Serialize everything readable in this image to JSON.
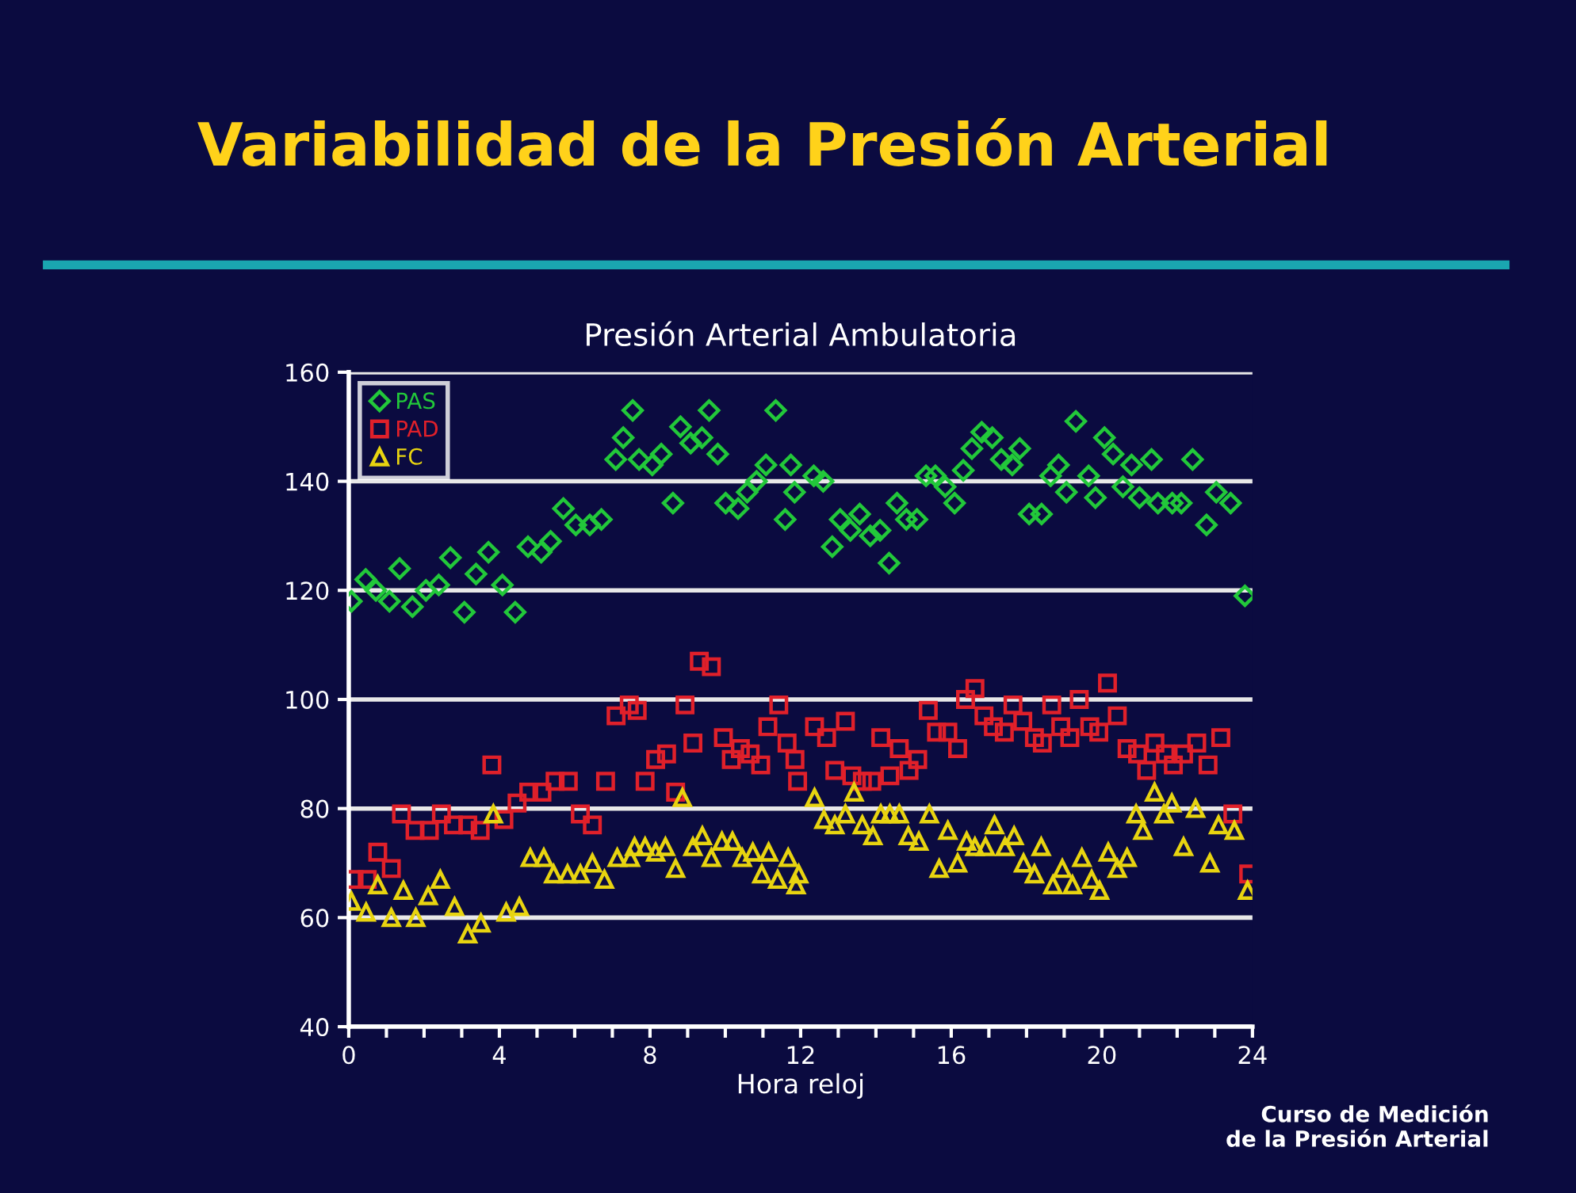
{
  "chart_data": {
    "type": "scatter",
    "title": "Variabilidad de la Presión Arterial",
    "subtitle": "Presión Arterial Ambulatoria",
    "xlabel": "Hora reloj",
    "annotations": [
      "Curso de Medición\nde la Presión Arterial"
    ],
    "xlim": [
      0,
      24
    ],
    "ylim": [
      40,
      160
    ],
    "xticks": [
      0,
      {
        "value": 1,
        "label": null
      },
      {
        "value": 2,
        "label": null
      },
      {
        "value": 3,
        "label": null
      },
      4,
      {
        "value": 5,
        "label": null
      },
      {
        "value": 6,
        "label": null
      },
      {
        "value": 7,
        "label": null
      },
      8,
      {
        "value": 9,
        "label": null
      },
      {
        "value": 10,
        "label": null
      },
      {
        "value": 11,
        "label": null
      },
      12,
      {
        "value": 13,
        "label": null
      },
      {
        "value": 14,
        "label": null
      },
      {
        "value": 15,
        "label": null
      },
      16,
      {
        "value": 17,
        "label": null
      },
      {
        "value": 18,
        "label": null
      },
      {
        "value": 19,
        "label": null
      },
      20,
      {
        "value": 21,
        "label": null
      },
      {
        "value": 22,
        "label": null
      },
      {
        "value": 23,
        "label": null
      },
      24
    ],
    "yticks": [
      40,
      60,
      80,
      100,
      120,
      140,
      160
    ],
    "grid": "y",
    "legend": "top left",
    "series": [
      {
        "name": "PAS",
        "color": "#22c83a",
        "marker": "diamond",
        "x": [
          0.07,
          0.45,
          0.72,
          1.08,
          1.35,
          1.69,
          2.05,
          2.39,
          2.7,
          3.07,
          3.38,
          3.71,
          4.08,
          4.42,
          4.76,
          5.11,
          5.36,
          5.7,
          6.03,
          6.4,
          6.71,
          7.09,
          7.29,
          7.54,
          7.71,
          8.06,
          8.3,
          8.61,
          8.81,
          9.08,
          9.38,
          9.57,
          9.8,
          10.01,
          10.34,
          10.58,
          10.83,
          11.08,
          11.34,
          11.59,
          11.74,
          11.84,
          12.35,
          12.6,
          12.84,
          13.05,
          13.32,
          13.57,
          13.85,
          14.11,
          14.35,
          14.56,
          14.81,
          15.09,
          15.33,
          15.58,
          15.84,
          16.09,
          16.32,
          16.55,
          16.81,
          17.09,
          17.33,
          17.62,
          17.82,
          18.07,
          18.4,
          18.64,
          18.85,
          19.06,
          19.31,
          19.65,
          19.83,
          20.07,
          20.3,
          20.56,
          20.79,
          21.0,
          21.32,
          21.49,
          21.87,
          22.11,
          22.41,
          22.78,
          23.04,
          23.42,
          23.8
        ],
        "values": [
          118,
          122,
          120,
          118,
          124,
          117,
          120,
          121,
          126,
          116,
          123,
          127,
          121,
          116,
          128,
          127,
          129,
          135,
          132,
          132,
          133,
          144,
          148,
          153,
          144,
          143,
          145,
          136,
          150,
          147,
          148,
          153,
          145,
          136,
          135,
          138,
          140,
          143,
          153,
          133,
          143,
          138,
          141,
          140,
          128,
          133,
          131,
          134,
          130,
          131,
          125,
          136,
          133,
          133,
          141,
          141,
          139,
          136,
          142,
          146,
          149,
          148,
          144,
          143,
          146,
          134,
          134,
          141,
          143,
          138,
          151,
          141,
          137,
          148,
          145,
          139,
          143,
          137,
          144,
          136,
          136,
          136,
          144,
          132,
          138,
          136,
          119
        ]
      },
      {
        "name": "PAD",
        "color": "#e0202a",
        "marker": "square",
        "x": [
          0.14,
          0.49,
          0.77,
          1.13,
          1.4,
          1.76,
          2.14,
          2.46,
          2.78,
          3.16,
          3.49,
          3.8,
          4.12,
          4.47,
          4.78,
          5.13,
          5.48,
          5.83,
          6.15,
          6.47,
          6.82,
          7.1,
          7.45,
          7.66,
          7.87,
          8.15,
          8.44,
          8.68,
          8.93,
          9.14,
          9.31,
          9.63,
          9.95,
          10.16,
          10.4,
          10.66,
          10.94,
          11.13,
          11.42,
          11.64,
          11.85,
          11.92,
          12.37,
          12.69,
          12.91,
          13.19,
          13.36,
          13.64,
          13.89,
          14.13,
          14.37,
          14.62,
          14.88,
          15.11,
          15.39,
          15.61,
          15.91,
          16.17,
          16.38,
          16.63,
          16.87,
          17.12,
          17.41,
          17.64,
          17.9,
          18.21,
          18.42,
          18.67,
          18.91,
          19.15,
          19.4,
          19.68,
          19.92,
          20.15,
          20.41,
          20.67,
          20.95,
          21.19,
          21.41,
          21.69,
          21.9,
          22.17,
          22.52,
          22.82,
          23.16,
          23.48,
          23.9
        ],
        "values": [
          67,
          67,
          72,
          69,
          79,
          76,
          76,
          79,
          77,
          77,
          76,
          88,
          78,
          81,
          83,
          83,
          85,
          85,
          79,
          77,
          85,
          97,
          99,
          98,
          85,
          89,
          90,
          83,
          99,
          92,
          107,
          106,
          93,
          89,
          91,
          90,
          88,
          95,
          99,
          92,
          89,
          85,
          95,
          93,
          87,
          96,
          86,
          85,
          85,
          93,
          86,
          91,
          87,
          89,
          98,
          94,
          94,
          91,
          100,
          102,
          97,
          95,
          94,
          99,
          96,
          93,
          92,
          99,
          95,
          93,
          100,
          95,
          94,
          103,
          97,
          91,
          90,
          87,
          92,
          90,
          88,
          90,
          92,
          88,
          93,
          79,
          68
        ]
      },
      {
        "name": "FC",
        "color": "#e8d410",
        "marker": "triangle",
        "x": [
          0.07,
          0.46,
          0.77,
          1.13,
          1.45,
          1.78,
          2.11,
          2.43,
          2.81,
          3.16,
          3.51,
          3.84,
          4.18,
          4.53,
          4.82,
          5.18,
          5.44,
          5.81,
          6.15,
          6.47,
          6.79,
          7.13,
          7.48,
          7.59,
          7.87,
          8.15,
          8.41,
          8.68,
          8.86,
          9.14,
          9.39,
          9.63,
          9.91,
          10.19,
          10.45,
          10.73,
          10.97,
          11.15,
          11.39,
          11.67,
          11.88,
          11.95,
          12.37,
          12.62,
          12.91,
          13.19,
          13.42,
          13.64,
          13.92,
          14.13,
          14.37,
          14.62,
          14.86,
          15.14,
          15.42,
          15.68,
          15.91,
          16.17,
          16.41,
          16.63,
          16.91,
          17.15,
          17.43,
          17.67,
          17.92,
          18.21,
          18.39,
          18.7,
          18.95,
          19.22,
          19.47,
          19.73,
          19.94,
          20.17,
          20.41,
          20.67,
          20.91,
          21.09,
          21.4,
          21.65,
          21.86,
          22.17,
          22.49,
          22.87,
          23.1,
          23.52,
          23.87
        ],
        "values": [
          63,
          61,
          66,
          60,
          65,
          60,
          64,
          67,
          62,
          57,
          59,
          79,
          61,
          62,
          71,
          71,
          68,
          68,
          68,
          70,
          67,
          71,
          71,
          73,
          73,
          72,
          73,
          69,
          82,
          73,
          75,
          71,
          74,
          74,
          71,
          72,
          68,
          72,
          67,
          71,
          66,
          68,
          82,
          78,
          77,
          79,
          83,
          77,
          75,
          79,
          79,
          79,
          75,
          74,
          79,
          69,
          76,
          70,
          74,
          73,
          73,
          77,
          73,
          75,
          70,
          68,
          73,
          66,
          69,
          66,
          71,
          67,
          65,
          72,
          69,
          71,
          79,
          76,
          83,
          79,
          81,
          73,
          80,
          70,
          77,
          76,
          65
        ]
      }
    ]
  }
}
